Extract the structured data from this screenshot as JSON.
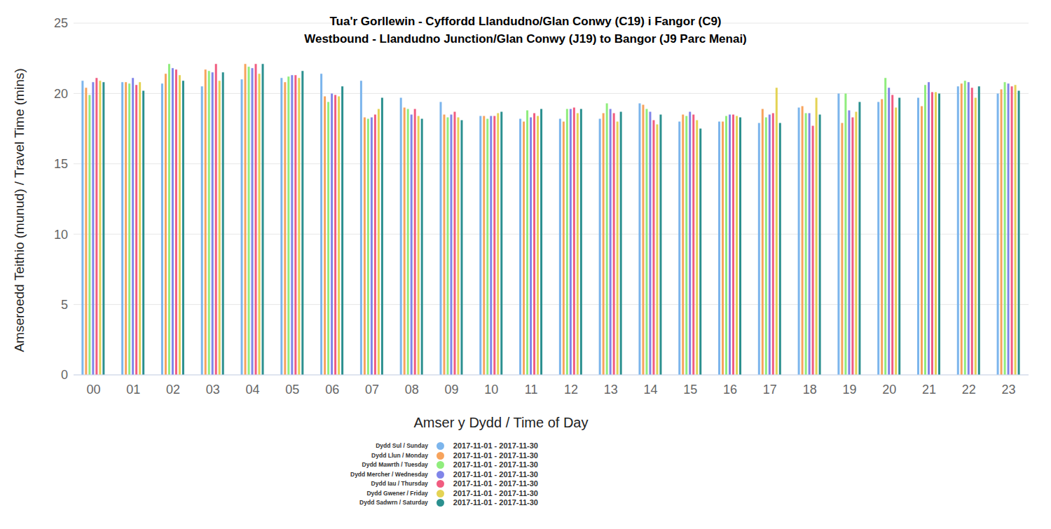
{
  "chart_data": {
    "type": "bar",
    "title": "Tua'r Gorllewin - Cyffordd Llandudno/Glan Conwy (C19) i Fangor (C9)",
    "subtitle": "Westbound - Llandudno Junction/Glan Conwy (J19) to Bangor (J9 Parc Menai)",
    "x_label": "Amser y Dydd / Time of Day",
    "y_label": "Amseroedd Teithio (munud) / Travel Time (mins)",
    "categories": [
      "00",
      "01",
      "02",
      "03",
      "04",
      "05",
      "06",
      "07",
      "08",
      "09",
      "10",
      "11",
      "12",
      "13",
      "14",
      "15",
      "16",
      "17",
      "18",
      "19",
      "20",
      "21",
      "22",
      "23"
    ],
    "series": [
      {
        "name": "Dydd Sul / Sunday",
        "period": "2017-11-01 - 2017-11-30",
        "color": "#7cb5ec",
        "values": [
          20.9,
          20.8,
          20.7,
          20.5,
          21.0,
          21.1,
          21.4,
          20.9,
          19.7,
          19.4,
          18.4,
          18.2,
          18.2,
          18.2,
          19.3,
          18.0,
          18.0,
          17.9,
          19.0,
          20.0,
          19.4,
          19.7,
          20.5,
          20.0
        ]
      },
      {
        "name": "Dydd Llun / Monday",
        "period": "2017-11-01 - 2017-11-30",
        "color": "#f7a35c",
        "values": [
          20.4,
          20.8,
          21.4,
          21.7,
          22.1,
          20.8,
          19.8,
          18.3,
          19.0,
          18.5,
          18.4,
          18.0,
          18.0,
          18.6,
          19.2,
          18.5,
          18.0,
          18.9,
          19.1,
          17.9,
          19.6,
          19.1,
          20.7,
          20.3
        ]
      },
      {
        "name": "Dydd Mawrth / Tuesday",
        "period": "2017-11-01 - 2017-11-30",
        "color": "#90ed7d",
        "values": [
          19.9,
          20.7,
          22.1,
          21.6,
          21.9,
          21.2,
          19.4,
          18.2,
          18.9,
          18.3,
          18.2,
          18.8,
          18.9,
          19.3,
          18.9,
          18.4,
          18.4,
          18.3,
          18.6,
          20.0,
          21.1,
          20.6,
          20.9,
          20.8
        ]
      },
      {
        "name": "Dydd Mercher / Wednesday",
        "period": "2017-11-01 - 2017-11-30",
        "color": "#8085e9",
        "values": [
          20.8,
          21.1,
          21.8,
          21.5,
          21.8,
          21.3,
          20.0,
          18.3,
          18.5,
          18.5,
          18.4,
          18.3,
          18.9,
          18.9,
          18.7,
          18.7,
          18.5,
          18.5,
          18.6,
          18.8,
          20.4,
          20.8,
          20.8,
          20.7
        ]
      },
      {
        "name": "Dydd Iau / Thursday",
        "period": "2017-11-01 - 2017-11-30",
        "color": "#f15c80",
        "values": [
          21.1,
          20.6,
          21.7,
          22.1,
          22.1,
          21.3,
          19.9,
          18.5,
          18.9,
          18.7,
          18.4,
          18.6,
          19.0,
          18.6,
          18.1,
          18.5,
          18.5,
          18.6,
          17.7,
          18.3,
          19.9,
          20.1,
          20.4,
          20.5
        ]
      },
      {
        "name": "Dydd Gwener / Friday",
        "period": "2017-11-01 - 2017-11-30",
        "color": "#e4d354",
        "values": [
          20.9,
          20.8,
          21.3,
          20.9,
          21.4,
          21.1,
          19.8,
          18.9,
          18.4,
          18.3,
          18.6,
          18.4,
          18.6,
          18.0,
          17.8,
          18.1,
          18.4,
          20.4,
          19.7,
          18.7,
          19.0,
          20.1,
          19.7,
          20.6
        ]
      },
      {
        "name": "Dydd Sadwrn / Saturday",
        "period": "2017-11-01 - 2017-11-30",
        "color": "#2b908f",
        "values": [
          20.8,
          20.2,
          20.9,
          21.5,
          22.1,
          21.6,
          20.5,
          19.7,
          18.2,
          18.1,
          18.7,
          18.9,
          18.9,
          18.7,
          18.5,
          17.5,
          18.3,
          17.9,
          18.5,
          19.4,
          19.7,
          20.0,
          20.5,
          20.2
        ]
      }
    ],
    "ylim": [
      0,
      25
    ],
    "yticks": [
      0,
      5,
      10,
      15,
      20,
      25
    ],
    "grid": true,
    "legend": "bottom"
  }
}
